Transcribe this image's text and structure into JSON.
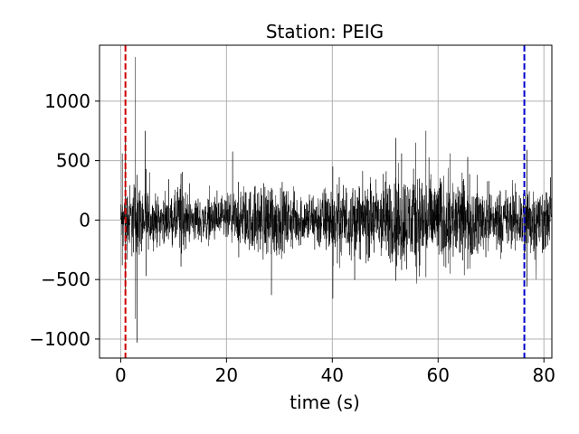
{
  "chart_data": {
    "type": "line",
    "title": "Station: PEIG",
    "xlabel": "time (s)",
    "ylabel": "",
    "xlim": [
      -4,
      81.5
    ],
    "ylim": [
      -1160,
      1470
    ],
    "x_ticks": [
      0,
      20,
      40,
      60,
      80
    ],
    "y_ticks": [
      -1000,
      -500,
      0,
      500,
      1000
    ],
    "x_tick_labels": [
      "0",
      "20",
      "40",
      "60",
      "80"
    ],
    "y_tick_labels": [
      "−1000",
      "−500",
      "0",
      "500",
      "1000"
    ],
    "grid": true,
    "series": [
      {
        "kind": "waveform",
        "color": "#000000",
        "t_start": 0,
        "t_end": 81.5,
        "baseline": 0,
        "noise_amplitude": 90,
        "envelope": [
          [
            0,
            0.9
          ],
          [
            1,
            1.6
          ],
          [
            3,
            1.7
          ],
          [
            6,
            1.1
          ],
          [
            10,
            1.0
          ],
          [
            11,
            1.8
          ],
          [
            13,
            1.0
          ],
          [
            18,
            1.0
          ],
          [
            22,
            1.2
          ],
          [
            25,
            1.5
          ],
          [
            28,
            1.8
          ],
          [
            31,
            1.4
          ],
          [
            35,
            1.1
          ],
          [
            40,
            1.7
          ],
          [
            45,
            1.6
          ],
          [
            50,
            2.0
          ],
          [
            55,
            2.2
          ],
          [
            60,
            2.0
          ],
          [
            65,
            1.9
          ],
          [
            70,
            1.5
          ],
          [
            74,
            1.3
          ],
          [
            77,
            1.8
          ],
          [
            81.5,
            1.3
          ]
        ],
        "spikes": [
          {
            "t": 0.3,
            "max": 560,
            "min": -380
          },
          {
            "t": 0.9,
            "max": 690,
            "min": -590
          },
          {
            "t": 2.8,
            "max": 1370,
            "min": -830
          },
          {
            "t": 3.1,
            "max": 380,
            "min": -1030
          },
          {
            "t": 4.8,
            "max": 430,
            "min": -470
          },
          {
            "t": 11.4,
            "max": 390,
            "min": -390
          },
          {
            "t": 28.5,
            "max": 270,
            "min": -630
          },
          {
            "t": 40.1,
            "max": 450,
            "min": -660
          },
          {
            "t": 52.0,
            "max": 690,
            "min": -510
          },
          {
            "t": 53.1,
            "max": 560,
            "min": -420
          },
          {
            "t": 55.8,
            "max": 650,
            "min": -390
          },
          {
            "t": 57.7,
            "max": 750,
            "min": -480
          },
          {
            "t": 62.3,
            "max": 560,
            "min": -450
          },
          {
            "t": 65.6,
            "max": 530,
            "min": -410
          },
          {
            "t": 76.8,
            "max": 590,
            "min": -560
          }
        ]
      }
    ],
    "markers": [
      {
        "x": 0.9,
        "color": "#cc0000",
        "style": "dashed"
      },
      {
        "x": 76.3,
        "color": "#0000cc",
        "style": "dashed"
      }
    ]
  }
}
